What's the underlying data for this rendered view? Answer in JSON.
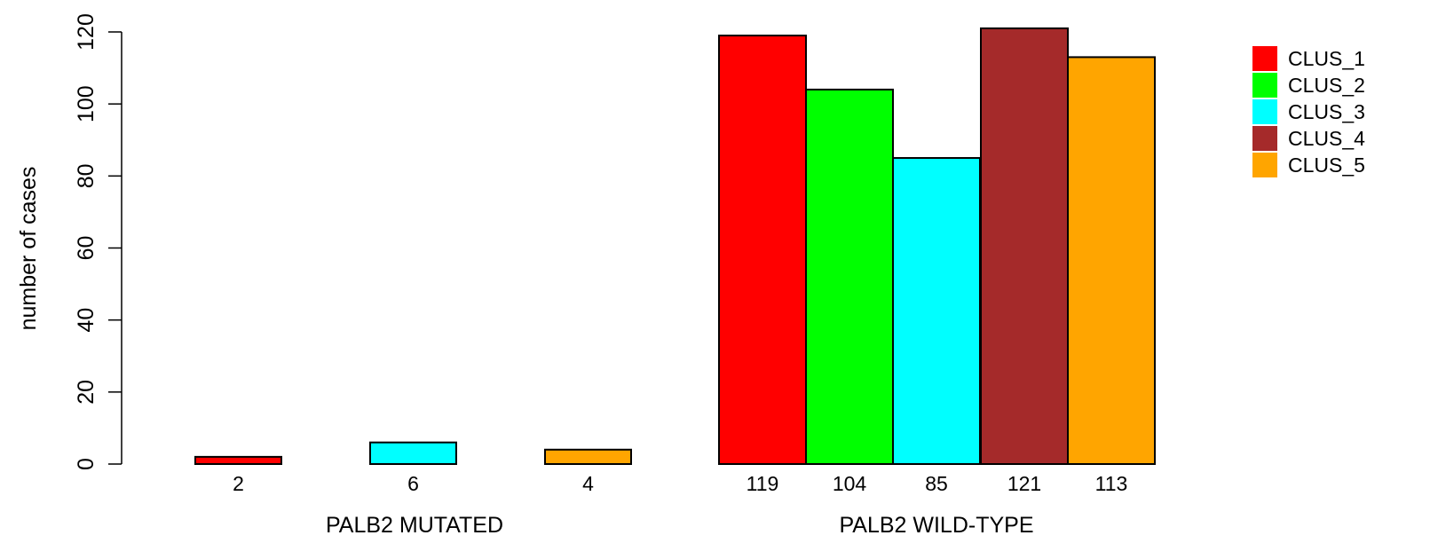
{
  "chart_data": {
    "type": "bar",
    "ylabel": "number of cases",
    "ylim": [
      0,
      120
    ],
    "yticks": [
      "0",
      "20",
      "40",
      "60",
      "80",
      "100",
      "120"
    ],
    "groups": [
      {
        "name": "PALB2 MUTATED",
        "values": [
          {
            "series": "CLUS_1",
            "value": 2,
            "label": "2"
          },
          {
            "series": "CLUS_3",
            "value": 6,
            "label": "6"
          },
          {
            "series": "CLUS_5",
            "value": 4,
            "label": "4"
          }
        ]
      },
      {
        "name": "PALB2 WILD-TYPE",
        "values": [
          {
            "series": "CLUS_1",
            "value": 119,
            "label": "119"
          },
          {
            "series": "CLUS_2",
            "value": 104,
            "label": "104"
          },
          {
            "series": "CLUS_3",
            "value": 85,
            "label": "85"
          },
          {
            "series": "CLUS_4",
            "value": 121,
            "label": "121"
          },
          {
            "series": "CLUS_5",
            "value": 113,
            "label": "113"
          }
        ]
      }
    ],
    "legend": {
      "position": "top-right",
      "entries": [
        {
          "name": "CLUS_1",
          "color": "#ff0000"
        },
        {
          "name": "CLUS_2",
          "color": "#00ff00"
        },
        {
          "name": "CLUS_3",
          "color": "#00ffff"
        },
        {
          "name": "CLUS_4",
          "color": "#a52a2a"
        },
        {
          "name": "CLUS_5",
          "color": "#ffa500"
        }
      ]
    },
    "grid": false
  }
}
